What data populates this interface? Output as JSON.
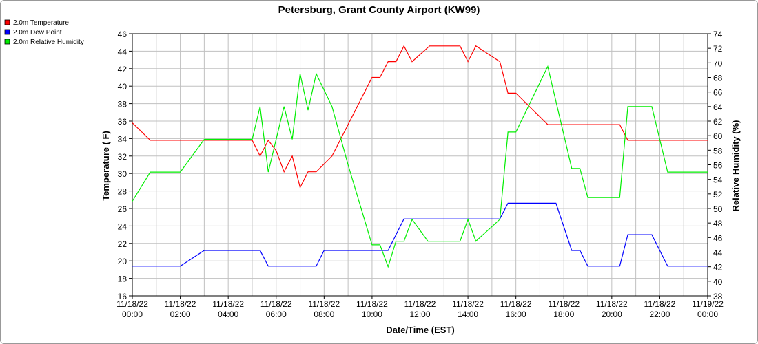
{
  "chart_data": {
    "type": "line",
    "title": "Petersburg, Grant County Airport (KW99)",
    "xlabel": "Date/Time (EST)",
    "ylabel_left": "Temperature ( F)",
    "ylabel_right": "Relative Humidity (%)",
    "x_ticks": [
      {
        "h": 0,
        "date": "11/18/22",
        "time": "00:00"
      },
      {
        "h": 2,
        "date": "11/18/22",
        "time": "02:00"
      },
      {
        "h": 4,
        "date": "11/18/22",
        "time": "04:00"
      },
      {
        "h": 6,
        "date": "11/18/22",
        "time": "06:00"
      },
      {
        "h": 8,
        "date": "11/18/22",
        "time": "08:00"
      },
      {
        "h": 10,
        "date": "11/18/22",
        "time": "10:00"
      },
      {
        "h": 12,
        "date": "11/18/22",
        "time": "12:00"
      },
      {
        "h": 14,
        "date": "11/18/22",
        "time": "14:00"
      },
      {
        "h": 16,
        "date": "11/18/22",
        "time": "16:00"
      },
      {
        "h": 18,
        "date": "11/18/22",
        "time": "18:00"
      },
      {
        "h": 20,
        "date": "11/18/22",
        "time": "20:00"
      },
      {
        "h": 22,
        "date": "11/18/22",
        "time": "22:00"
      },
      {
        "h": 24,
        "date": "11/19/22",
        "time": "00:00"
      }
    ],
    "xlim": [
      0,
      24
    ],
    "ylim_left": [
      16,
      46
    ],
    "ylim_right": [
      38,
      74
    ],
    "yticks_left": [
      16,
      18,
      20,
      22,
      24,
      26,
      28,
      30,
      32,
      34,
      36,
      38,
      40,
      42,
      44,
      46
    ],
    "yticks_right": [
      38,
      40,
      42,
      44,
      46,
      48,
      50,
      52,
      54,
      56,
      58,
      60,
      62,
      64,
      66,
      68,
      70,
      72,
      74
    ],
    "grid": true,
    "legend_position": "top-left",
    "series": [
      {
        "name": "2.0m Temperature",
        "axis": "left",
        "color": "#ff0000",
        "points": [
          [
            0.0,
            35.8
          ],
          [
            0.75,
            33.8
          ],
          [
            5.0,
            33.8
          ],
          [
            5.33,
            32.0
          ],
          [
            5.67,
            33.8
          ],
          [
            6.0,
            32.6
          ],
          [
            6.33,
            30.2
          ],
          [
            6.67,
            32.0
          ],
          [
            7.0,
            28.4
          ],
          [
            7.33,
            30.2
          ],
          [
            7.67,
            30.2
          ],
          [
            8.33,
            32.0
          ],
          [
            9.0,
            35.6
          ],
          [
            10.0,
            41.0
          ],
          [
            10.33,
            41.0
          ],
          [
            10.67,
            42.8
          ],
          [
            11.0,
            42.8
          ],
          [
            11.33,
            44.6
          ],
          [
            11.67,
            42.8
          ],
          [
            12.4,
            44.6
          ],
          [
            13.0,
            44.6
          ],
          [
            13.67,
            44.6
          ],
          [
            14.0,
            42.8
          ],
          [
            14.33,
            44.6
          ],
          [
            15.33,
            42.8
          ],
          [
            15.67,
            39.2
          ],
          [
            16.0,
            39.2
          ],
          [
            17.33,
            35.6
          ],
          [
            18.0,
            35.6
          ],
          [
            20.33,
            35.6
          ],
          [
            20.67,
            33.8
          ],
          [
            24.0,
            33.8
          ]
        ]
      },
      {
        "name": "2.0m Dew Point",
        "axis": "left",
        "color": "#0000ff",
        "points": [
          [
            0.0,
            19.4
          ],
          [
            2.0,
            19.4
          ],
          [
            3.0,
            21.2
          ],
          [
            5.33,
            21.2
          ],
          [
            5.67,
            19.4
          ],
          [
            7.67,
            19.4
          ],
          [
            8.0,
            21.2
          ],
          [
            10.67,
            21.2
          ],
          [
            11.33,
            24.8
          ],
          [
            15.33,
            24.8
          ],
          [
            15.67,
            26.6
          ],
          [
            17.67,
            26.6
          ],
          [
            18.33,
            21.2
          ],
          [
            18.67,
            21.2
          ],
          [
            19.0,
            19.4
          ],
          [
            20.33,
            19.4
          ],
          [
            20.67,
            23.0
          ],
          [
            21.67,
            23.0
          ],
          [
            22.33,
            19.4
          ],
          [
            24.0,
            19.4
          ]
        ]
      },
      {
        "name": "2.0m Relative Humidity",
        "axis": "right",
        "color": "#00ee00",
        "points": [
          [
            0.0,
            51.0
          ],
          [
            0.75,
            55.0
          ],
          [
            2.0,
            55.0
          ],
          [
            3.0,
            59.5
          ],
          [
            5.0,
            59.5
          ],
          [
            5.33,
            64.0
          ],
          [
            5.67,
            55.0
          ],
          [
            6.33,
            64.0
          ],
          [
            6.67,
            59.5
          ],
          [
            7.0,
            68.5
          ],
          [
            7.33,
            63.5
          ],
          [
            7.67,
            68.5
          ],
          [
            8.33,
            64.0
          ],
          [
            9.0,
            56.0
          ],
          [
            10.0,
            45.0
          ],
          [
            10.33,
            45.0
          ],
          [
            10.67,
            42.0
          ],
          [
            11.0,
            45.5
          ],
          [
            11.33,
            45.5
          ],
          [
            11.67,
            48.5
          ],
          [
            12.33,
            45.5
          ],
          [
            13.0,
            45.5
          ],
          [
            13.67,
            45.5
          ],
          [
            14.0,
            48.5
          ],
          [
            14.33,
            45.5
          ],
          [
            15.33,
            48.5
          ],
          [
            15.67,
            60.5
          ],
          [
            16.0,
            60.5
          ],
          [
            17.33,
            69.5
          ],
          [
            18.33,
            55.5
          ],
          [
            18.67,
            55.5
          ],
          [
            19.0,
            51.5
          ],
          [
            20.33,
            51.5
          ],
          [
            20.67,
            64.0
          ],
          [
            21.67,
            64.0
          ],
          [
            22.33,
            55.0
          ],
          [
            24.0,
            55.0
          ]
        ]
      }
    ]
  }
}
